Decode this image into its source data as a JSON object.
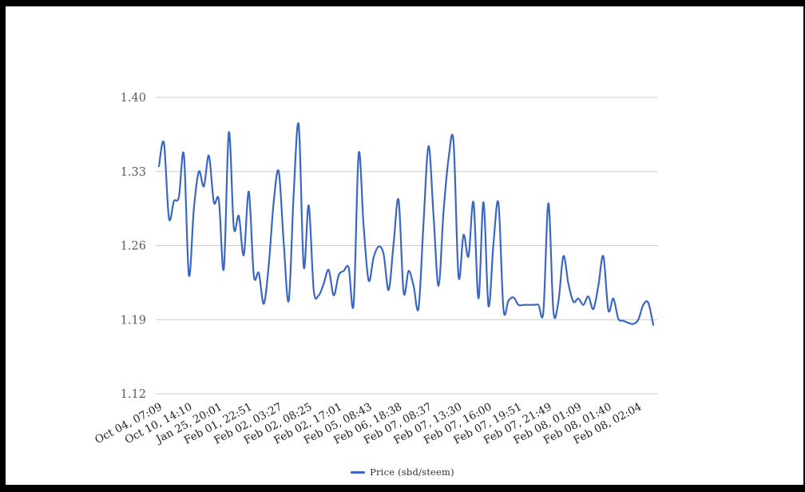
{
  "chart_data": {
    "type": "line",
    "title": "",
    "legend": "Price (sbd/steem)",
    "legend_position": "bottom",
    "grid": true,
    "curve": "smooth",
    "ylabel": "",
    "xlabel": "",
    "ylim": [
      1.12,
      1.4
    ],
    "y_ticks": [
      1.4,
      1.33,
      1.26,
      1.19,
      1.12
    ],
    "y_tick_labels": [
      "1.40",
      "1.33",
      "1.26",
      "1.19",
      "1.12"
    ],
    "x_tick_labels": [
      "Oct 04, 07:09",
      "Oct 10, 14:10",
      "Jan 25, 20:01",
      "Feb 01, 22:51",
      "Feb 02, 03:27",
      "Feb 02, 08:25",
      "Feb 02, 17:01",
      "Feb 05, 08:43",
      "Feb 06, 18:38",
      "Feb 07, 08:37",
      "Feb 07, 13:30",
      "Feb 07, 16:00",
      "Feb 07, 19:51",
      "Feb 07, 21:49",
      "Feb 08, 01:09",
      "Feb 08, 01:40",
      "Feb 08, 02:04"
    ],
    "x_label_every": 6,
    "values": [
      1.335,
      1.357,
      1.286,
      1.302,
      1.306,
      1.346,
      1.232,
      1.295,
      1.33,
      1.316,
      1.345,
      1.301,
      1.303,
      1.238,
      1.367,
      1.277,
      1.288,
      1.251,
      1.311,
      1.232,
      1.234,
      1.205,
      1.242,
      1.302,
      1.33,
      1.262,
      1.208,
      1.31,
      1.374,
      1.24,
      1.298,
      1.218,
      1.213,
      1.224,
      1.237,
      1.213,
      1.232,
      1.236,
      1.239,
      1.205,
      1.347,
      1.278,
      1.227,
      1.249,
      1.259,
      1.252,
      1.218,
      1.262,
      1.303,
      1.216,
      1.236,
      1.222,
      1.201,
      1.282,
      1.354,
      1.288,
      1.222,
      1.292,
      1.342,
      1.358,
      1.231,
      1.27,
      1.25,
      1.301,
      1.21,
      1.301,
      1.203,
      1.262,
      1.3,
      1.2,
      1.208,
      1.211,
      1.204,
      1.204,
      1.204,
      1.204,
      1.204,
      1.198,
      1.3,
      1.198,
      1.207,
      1.25,
      1.224,
      1.207,
      1.21,
      1.204,
      1.212,
      1.2,
      1.222,
      1.25,
      1.199,
      1.21,
      1.191,
      1.189,
      1.187,
      1.186,
      1.19,
      1.204,
      1.206,
      1.185
    ]
  },
  "colors": {
    "line": "#3a67c3",
    "grid": "#cccccc",
    "y_label": "#5b5b5b",
    "x_label": "#1e1e1e",
    "legend_text": "#2e2e2e",
    "frame": "#000000",
    "background": "#ffffff"
  }
}
